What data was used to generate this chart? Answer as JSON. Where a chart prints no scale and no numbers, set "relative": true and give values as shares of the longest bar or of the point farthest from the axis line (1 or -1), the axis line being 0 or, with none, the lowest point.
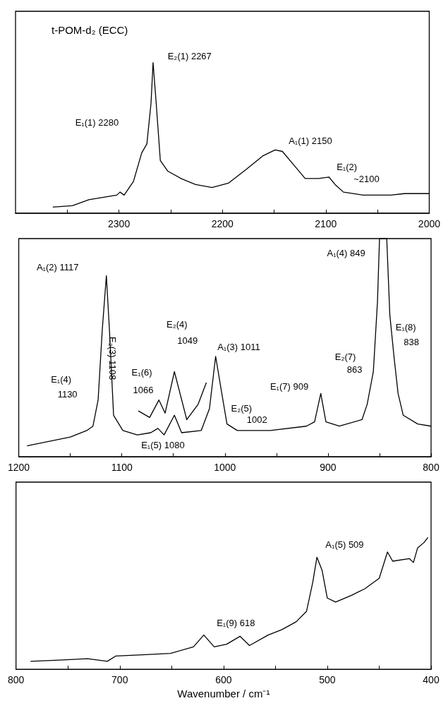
{
  "chart_data": [
    {
      "type": "line",
      "title": "t-POM-d₂ (ECC)",
      "relative": true,
      "grid": false,
      "xlim": [
        2400,
        2000
      ],
      "xticks": [
        {
          "value": 2350,
          "label": null
        },
        2300,
        {
          "value": 2250,
          "label": null
        },
        2200,
        {
          "value": 2150,
          "label": null
        },
        2100,
        {
          "value": 2050,
          "label": null
        },
        2000
      ],
      "series": [
        {
          "color": "#000000",
          "x": [
            2364,
            2345,
            2329,
            2302,
            2299,
            2295,
            2286,
            2278,
            2273,
            2269,
            2267,
            2264,
            2260,
            2253,
            2240,
            2226,
            2210,
            2194,
            2177,
            2161,
            2149,
            2142,
            2131,
            2120,
            2107,
            2097,
            2091,
            2083,
            2064,
            2037,
            2024,
            2000
          ],
          "values": [
            0.04,
            0.05,
            0.09,
            0.12,
            0.14,
            0.12,
            0.21,
            0.4,
            0.46,
            0.73,
            1,
            0.73,
            0.35,
            0.28,
            0.23,
            0.19,
            0.17,
            0.2,
            0.29,
            0.38,
            0.42,
            0.41,
            0.32,
            0.23,
            0.23,
            0.24,
            0.19,
            0.14,
            0.12,
            0.12,
            0.13,
            0.13
          ]
        }
      ],
      "annotations": [
        "E₂(1) 2267",
        "E₁(1) 2280",
        "A₁(1) 2150",
        "E₁(2)",
        "~2100"
      ]
    },
    {
      "type": "line",
      "relative": true,
      "grid": false,
      "xlim": [
        1200,
        800
      ],
      "xticks": [
        1200,
        {
          "value": 1150,
          "label": null
        },
        1100,
        {
          "value": 1050,
          "label": null
        },
        1000,
        {
          "value": 950,
          "label": null
        },
        900,
        {
          "value": 850,
          "label": null
        },
        800
      ],
      "series": [
        {
          "color": "#000000",
          "x": [
            1192,
            1171,
            1150,
            1134,
            1128,
            1123,
            1119,
            1115,
            1112,
            1108,
            1099,
            1085,
            1072,
            1065,
            1059,
            1049,
            1042,
            1023,
            1015,
            1009,
            1003,
            998,
            988,
            956,
            921,
            913,
            907,
            902,
            889,
            867,
            862,
            856,
            852,
            850,
            843,
            840,
            836,
            832,
            827,
            813,
            800
          ],
          "values": [
            0.05,
            0.07,
            0.09,
            0.12,
            0.14,
            0.26,
            0.58,
            0.83,
            0.58,
            0.19,
            0.12,
            0.1,
            0.11,
            0.13,
            0.1,
            0.19,
            0.11,
            0.12,
            0.22,
            0.46,
            0.29,
            0.15,
            0.12,
            0.12,
            0.14,
            0.16,
            0.29,
            0.16,
            0.14,
            0.17,
            0.24,
            0.39,
            0.71,
            1,
            1,
            0.65,
            0.46,
            0.29,
            0.19,
            0.15,
            0.14
          ]
        },
        {
          "color": "#000000",
          "x": [
            1084,
            1073,
            1064,
            1058,
            1049,
            1037,
            1026,
            1018
          ],
          "values": [
            0.21,
            0.18,
            0.26,
            0.2,
            0.39,
            0.17,
            0.24,
            0.34
          ]
        }
      ],
      "annotations": [
        "A₁(2) 1117",
        "E₁(4)",
        "1130",
        "E₂(3) 1108",
        "E₁(6)",
        "1066",
        "E₁(5) 1080",
        "E₂(4)",
        "1049",
        "A₁(3) 1011",
        "E₂(5)",
        "1002",
        "E₁(7) 909",
        "E₂(7)",
        "863",
        "A₁(4) 849",
        "E₁(8)",
        "838"
      ]
    },
    {
      "type": "line",
      "relative": true,
      "grid": false,
      "xlim": [
        800,
        400
      ],
      "xlabel": "Wavenumber / cm⁻¹",
      "xticks": [
        800,
        {
          "value": 750,
          "label": null
        },
        700,
        {
          "value": 650,
          "label": null
        },
        600,
        {
          "value": 550,
          "label": null
        },
        500,
        {
          "value": 450,
          "label": null
        },
        400
      ],
      "series": [
        {
          "color": "#000000",
          "x": [
            786,
            758,
            731,
            712,
            704,
            678,
            651,
            629,
            619,
            609,
            597,
            584,
            575,
            557,
            544,
            530,
            520,
            514,
            510,
            505,
            500,
            492,
            477,
            464,
            450,
            442,
            437,
            421,
            417,
            413,
            407,
            403
          ],
          "values": [
            0.06,
            0.07,
            0.08,
            0.06,
            0.1,
            0.11,
            0.12,
            0.17,
            0.26,
            0.17,
            0.19,
            0.25,
            0.18,
            0.26,
            0.3,
            0.36,
            0.44,
            0.66,
            0.85,
            0.75,
            0.54,
            0.51,
            0.56,
            0.61,
            0.69,
            0.89,
            0.82,
            0.84,
            0.81,
            0.92,
            0.96,
            1
          ]
        }
      ],
      "annotations": [
        "A₁(5) 509",
        "E₁(9) 618"
      ]
    }
  ]
}
